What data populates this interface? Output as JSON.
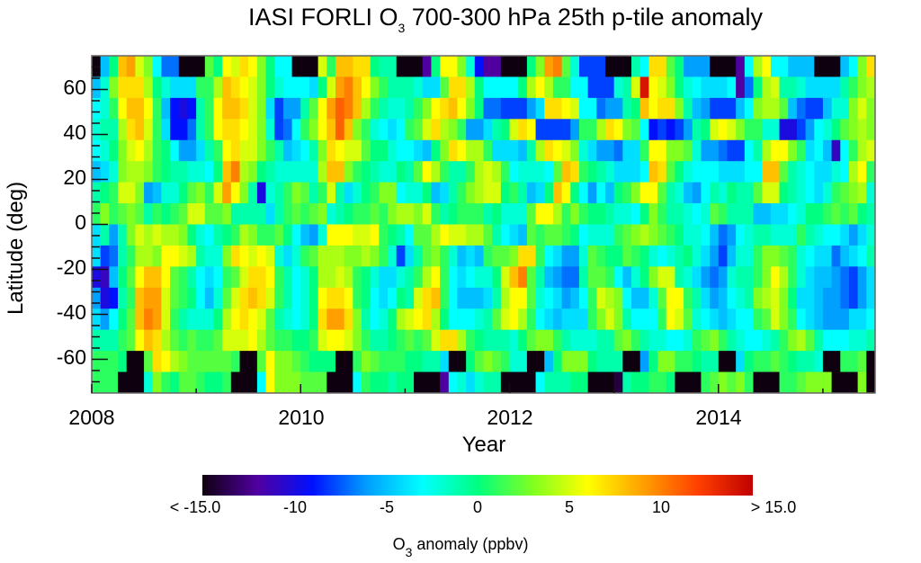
{
  "chart_data": {
    "type": "heatmap",
    "title": "IASI FORLI O3 700-300 hPa 25th p-tile anomaly",
    "title_parts": {
      "pre": "IASI FORLI O",
      "sub": "3",
      "post": " 700-300 hPa 25th p-tile anomaly"
    },
    "xlabel": "Year",
    "ylabel": "Latitude (deg)",
    "x_ticks": [
      "2008",
      "2010",
      "2012",
      "2014"
    ],
    "y_ticks": [
      "60",
      "40",
      "20",
      "0",
      "-20",
      "-40",
      "-60"
    ],
    "xlim": [
      2008.0,
      2015.5
    ],
    "ylim": [
      -75,
      75
    ],
    "x_start": 2008.0,
    "x_step_months": 1,
    "y_rows_lat_top_to_bottom": [
      70,
      60,
      50,
      40,
      30,
      20,
      10,
      0,
      -10,
      -20,
      -30,
      -40,
      -50,
      -60,
      -70,
      -75
    ],
    "colorbar": {
      "min": -15,
      "max": 15,
      "tick_labels": [
        "< -15.0",
        "-10",
        "-5",
        "0",
        "5",
        "10",
        "> 15.0"
      ],
      "tick_values": [
        -15,
        -10,
        -5,
        0,
        5,
        10,
        15
      ],
      "label_parts": {
        "pre": "O",
        "sub": "3",
        "post": " anomaly (ppbv)"
      },
      "label": "O3 anomaly (ppbv)",
      "stops": [
        "#0f0010",
        "#5000a0",
        "#0010ff",
        "#00a0ff",
        "#00ffff",
        "#00ff80",
        "#80ff20",
        "#ffff00",
        "#ffa000",
        "#ff4000",
        "#c00000"
      ]
    },
    "z": [
      [
        -16,
        -5,
        0,
        8,
        9,
        5,
        3,
        -3,
        -7,
        -7,
        -16,
        -16,
        -16,
        2,
        0,
        6,
        5,
        7,
        6,
        3,
        0,
        -3,
        -3,
        -16,
        -16,
        -16,
        5,
        1,
        8,
        8,
        7,
        7,
        0,
        -1,
        -1,
        -16,
        -16,
        -16,
        -12,
        0,
        6,
        6,
        3,
        -2,
        -9,
        -12,
        -12,
        -16,
        -16,
        -16,
        0,
        3,
        9,
        10,
        2,
        -2,
        -8,
        -8,
        -8,
        -16,
        -16,
        -16,
        -1,
        -3,
        7,
        7,
        2,
        0,
        -6,
        -6,
        -6,
        -16,
        -16,
        -16,
        -12,
        -3,
        4,
        6,
        -3,
        -3,
        -5,
        -5,
        -5,
        -16,
        -16,
        -16,
        -5,
        -3,
        3,
        7
      ],
      [
        -5,
        -2,
        3,
        7,
        7,
        7,
        4,
        0,
        -2,
        -4,
        -4,
        -4,
        1,
        1,
        4,
        8,
        7,
        6,
        5,
        3,
        0,
        -2,
        -3,
        -3,
        -3,
        -4,
        0,
        5,
        9,
        10,
        8,
        6,
        3,
        1,
        -1,
        -1,
        -1,
        -2,
        -4,
        -4,
        2,
        7,
        7,
        4,
        0,
        -3,
        -3,
        -3,
        -3,
        0,
        4,
        6,
        4,
        1,
        1,
        -3,
        -3,
        -8,
        -8,
        -8,
        -2,
        -1,
        5,
        14,
        6,
        5,
        3,
        0,
        -2,
        -3,
        -4,
        -4,
        -4,
        -3,
        -12,
        -7,
        0,
        4,
        5,
        -1,
        -1,
        -2,
        -4,
        -4,
        -4,
        -4,
        -1,
        1,
        3,
        4
      ],
      [
        -3,
        -2,
        1,
        6,
        8,
        8,
        6,
        1,
        -5,
        -9,
        -10,
        -9,
        -1,
        1,
        6,
        8,
        8,
        7,
        5,
        3,
        -4,
        -8,
        -6,
        -6,
        -1,
        2,
        6,
        9,
        11,
        10,
        8,
        4,
        1,
        -1,
        -2,
        -2,
        -1,
        1,
        3,
        6,
        7,
        8,
        6,
        3,
        0,
        -7,
        -7,
        -8,
        -8,
        -8,
        -6,
        -4,
        7,
        7,
        6,
        5,
        -3,
        -3,
        -7,
        -6,
        -6,
        -1,
        0,
        8,
        6,
        7,
        7,
        3,
        -1,
        -5,
        -6,
        -8,
        -8,
        -8,
        -5,
        -3,
        3,
        4,
        4,
        2,
        -5,
        -7,
        -8,
        -8,
        -5,
        -2,
        -2,
        3,
        5,
        3
      ],
      [
        -2,
        -1,
        -1,
        4,
        7,
        8,
        5,
        1,
        -4,
        -9,
        -9,
        -7,
        -1,
        1,
        6,
        7,
        7,
        6,
        5,
        3,
        -2,
        -8,
        -7,
        -3,
        1,
        3,
        6,
        8,
        11,
        8,
        3,
        1,
        -2,
        -3,
        -4,
        -3,
        1,
        2,
        5,
        7,
        4,
        3,
        1,
        -6,
        -6,
        -4,
        -1,
        0,
        5,
        7,
        6,
        -8,
        -8,
        -8,
        -8,
        -6,
        1,
        1,
        4,
        7,
        6,
        3,
        2,
        -3,
        -9,
        -8,
        -9,
        -8,
        -6,
        -1,
        0,
        5,
        6,
        5,
        3,
        1,
        1,
        -2,
        -2,
        -10,
        -10,
        -8,
        -6,
        -3,
        -2,
        0,
        2,
        3,
        4,
        3
      ],
      [
        -3,
        -2,
        0,
        3,
        5,
        6,
        4,
        1,
        0,
        -3,
        -6,
        -6,
        -4,
        -1,
        1,
        6,
        7,
        5,
        5,
        3,
        1,
        -1,
        -5,
        -4,
        -3,
        -1,
        3,
        7,
        6,
        5,
        5,
        2,
        0,
        0,
        -2,
        -3,
        -3,
        -4,
        -5,
        0,
        3,
        7,
        6,
        4,
        4,
        1,
        -4,
        -4,
        -4,
        -5,
        -1,
        4,
        7,
        6,
        5,
        3,
        -2,
        -4,
        -6,
        -6,
        -7,
        -4,
        -4,
        1,
        6,
        6,
        3,
        3,
        2,
        -2,
        -6,
        -6,
        -7,
        -8,
        -8,
        -3,
        -1,
        4,
        6,
        6,
        3,
        1,
        -4,
        -3,
        -5,
        -11,
        -3,
        1,
        4,
        5
      ],
      [
        -5,
        -4,
        -2,
        3,
        4,
        4,
        3,
        1,
        0,
        -1,
        -1,
        -2,
        -2,
        -3,
        0,
        8,
        10,
        4,
        3,
        0,
        -1,
        -2,
        -2,
        -2,
        -2,
        -2,
        4,
        8,
        8,
        3,
        1,
        0,
        -1,
        -2,
        -2,
        0,
        -1,
        2,
        6,
        4,
        1,
        -1,
        -1,
        1,
        4,
        5,
        4,
        1,
        -3,
        -2,
        -2,
        -2,
        -3,
        2,
        8,
        7,
        1,
        0,
        -1,
        -2,
        -4,
        -4,
        -4,
        -3,
        8,
        7,
        2,
        0,
        -2,
        -3,
        -3,
        -3,
        -4,
        -4,
        -4,
        -3,
        -3,
        8,
        8,
        2,
        -1,
        -2,
        -3,
        -4,
        -4,
        -2,
        -3,
        4,
        6,
        1
      ],
      [
        -1,
        0,
        1,
        5,
        5,
        3,
        -6,
        -5,
        -2,
        -2,
        0,
        2,
        3,
        1,
        5,
        9,
        6,
        3,
        -1,
        -10,
        -2,
        -1,
        1,
        3,
        2,
        -1,
        1,
        5,
        -1,
        -4,
        -2,
        0,
        1,
        3,
        3,
        -3,
        -2,
        -2,
        0,
        -5,
        -4,
        -1,
        1,
        3,
        4,
        5,
        5,
        0,
        1,
        -1,
        -5,
        -4,
        0,
        8,
        6,
        0,
        -3,
        -6,
        -3,
        -5,
        0,
        1,
        3,
        6,
        6,
        2,
        -1,
        -2,
        -5,
        -6,
        -3,
        -1,
        -2,
        0,
        -1,
        -1,
        2,
        5,
        5,
        0,
        -1,
        -2,
        -3,
        -4,
        -2,
        1,
        2,
        3,
        4,
        -2
      ],
      [
        1,
        3,
        1,
        2,
        3,
        2,
        -1,
        1,
        0,
        1,
        2,
        5,
        5,
        2,
        2,
        3,
        -1,
        -1,
        -1,
        -1,
        -4,
        -1,
        1,
        2,
        1,
        2,
        3,
        -2,
        -1,
        0,
        1,
        1,
        2,
        1,
        3,
        4,
        4,
        3,
        5,
        1,
        -1,
        0,
        1,
        1,
        1,
        -1,
        0,
        -2,
        -2,
        -2,
        2,
        6,
        6,
        4,
        1,
        3,
        1,
        0,
        0,
        -1,
        -2,
        -2,
        -3,
        0,
        3,
        1,
        -1,
        -1,
        -2,
        -3,
        -2,
        2,
        1,
        -1,
        -1,
        -1,
        -5,
        -5,
        -4,
        -4,
        -3,
        -2,
        0,
        0,
        1,
        2,
        1,
        2,
        0,
        -1
      ],
      [
        -4,
        -1,
        -6,
        -1,
        3,
        5,
        4,
        5,
        4,
        4,
        3,
        0,
        -2,
        -3,
        -1,
        0,
        1,
        4,
        3,
        1,
        1,
        2,
        0,
        -3,
        -5,
        -6,
        -2,
        6,
        6,
        6,
        5,
        5,
        6,
        1,
        0,
        -1,
        -3,
        2,
        2,
        4,
        6,
        5,
        5,
        4,
        4,
        2,
        -1,
        -3,
        -4,
        -5,
        2,
        1,
        2,
        2,
        1,
        0,
        -3,
        -2,
        -2,
        -2,
        1,
        2,
        3,
        4,
        3,
        2,
        1,
        0,
        -2,
        -2,
        -3,
        -5,
        -7,
        -6,
        -3,
        -2,
        -1,
        -1,
        -2,
        -2,
        -2,
        1,
        -1,
        -2,
        -3,
        -3,
        -4,
        -6,
        -4,
        -2
      ],
      [
        -4,
        -8,
        -7,
        -1,
        1,
        4,
        4,
        3,
        6,
        6,
        5,
        4,
        -1,
        -2,
        -2,
        3,
        7,
        6,
        5,
        6,
        5,
        -2,
        -4,
        -2,
        1,
        2,
        4,
        4,
        4,
        3,
        3,
        4,
        3,
        1,
        -2,
        -8,
        -4,
        -1,
        2,
        3,
        1,
        -2,
        -5,
        -4,
        -5,
        1,
        2,
        2,
        3,
        7,
        7,
        1,
        -3,
        -4,
        -6,
        -6,
        -2,
        2,
        1,
        0,
        0,
        2,
        1,
        0,
        -2,
        -3,
        -2,
        -1,
        0,
        -2,
        -4,
        -6,
        -8,
        -5,
        -2,
        -2,
        1,
        3,
        3,
        2,
        1,
        -2,
        -3,
        -4,
        -4,
        -7,
        -5,
        -4,
        -3,
        -1
      ],
      [
        -10,
        -11,
        -5,
        0,
        2,
        6,
        8,
        8,
        6,
        2,
        1,
        -1,
        -3,
        -4,
        -3,
        1,
        2,
        5,
        7,
        7,
        6,
        1,
        -1,
        -3,
        -2,
        0,
        4,
        4,
        5,
        4,
        1,
        0,
        -2,
        -4,
        -4,
        -2,
        -1,
        1,
        4,
        6,
        1,
        -3,
        -4,
        -3,
        -2,
        -2,
        0,
        5,
        8,
        10,
        2,
        -1,
        -5,
        -6,
        -7,
        -7,
        -1,
        2,
        2,
        1,
        -3,
        -5,
        -2,
        0,
        3,
        5,
        5,
        -1,
        -2,
        -4,
        -6,
        -7,
        -6,
        -2,
        -1,
        -1,
        1,
        3,
        6,
        4,
        1,
        -2,
        -4,
        -5,
        -5,
        -6,
        -7,
        -8,
        -6,
        -4
      ],
      [
        -6,
        -10,
        -9,
        -1,
        1,
        8,
        9,
        9,
        5,
        2,
        1,
        0,
        -3,
        -5,
        -2,
        2,
        5,
        7,
        8,
        7,
        5,
        1,
        -1,
        -3,
        -2,
        0,
        6,
        7,
        7,
        6,
        1,
        0,
        -3,
        -4,
        -3,
        0,
        -1,
        5,
        7,
        8,
        1,
        -3,
        -5,
        -5,
        -5,
        -4,
        -1,
        4,
        6,
        6,
        2,
        -2,
        -3,
        -4,
        -6,
        -5,
        -3,
        1,
        5,
        4,
        3,
        -3,
        -5,
        -5,
        -2,
        2,
        6,
        6,
        1,
        -1,
        -4,
        -6,
        -5,
        -3,
        -2,
        -1,
        3,
        4,
        5,
        3,
        0,
        -4,
        -4,
        -5,
        -6,
        -6,
        -7,
        -8,
        -6,
        -4
      ],
      [
        -4,
        -6,
        -3,
        0,
        2,
        8,
        10,
        9,
        5,
        1,
        -1,
        -2,
        -2,
        -2,
        0,
        4,
        6,
        7,
        6,
        5,
        2,
        -1,
        -2,
        -3,
        -2,
        0,
        7,
        9,
        9,
        7,
        3,
        -1,
        -3,
        -2,
        0,
        4,
        5,
        6,
        7,
        4,
        0,
        -3,
        -3,
        -3,
        -2,
        -1,
        2,
        5,
        6,
        4,
        1,
        -3,
        -4,
        -5,
        -4,
        -4,
        -4,
        1,
        3,
        5,
        3,
        -1,
        -3,
        -3,
        -3,
        1,
        6,
        5,
        2,
        -2,
        -3,
        -4,
        -5,
        -4,
        -3,
        -3,
        1,
        2,
        5,
        3,
        1,
        -3,
        -4,
        -5,
        -6,
        -6,
        -6,
        -4,
        -4,
        -3
      ],
      [
        -1,
        -1,
        -1,
        1,
        2,
        6,
        8,
        7,
        4,
        2,
        1,
        2,
        1,
        1,
        2,
        5,
        5,
        5,
        6,
        4,
        2,
        1,
        1,
        0,
        0,
        1,
        5,
        6,
        6,
        5,
        3,
        1,
        -1,
        -1,
        0,
        1,
        2,
        1,
        2,
        5,
        7,
        7,
        4,
        1,
        0,
        -1,
        -1,
        -1,
        -2,
        0,
        2,
        3,
        3,
        1,
        -1,
        -2,
        -2,
        -2,
        -1,
        -1,
        2,
        3,
        1,
        -1,
        -2,
        -2,
        -3,
        -3,
        -2,
        1,
        2,
        3,
        1,
        -1,
        -2,
        -3,
        -3,
        -2,
        -1,
        1,
        3,
        4,
        2,
        -1,
        -3,
        -3,
        -3,
        -2,
        -2,
        -1
      ],
      [
        1,
        1,
        1,
        0,
        -16,
        -16,
        2,
        7,
        6,
        4,
        3,
        2,
        2,
        2,
        2,
        2,
        1,
        -16,
        -16,
        2,
        6,
        3,
        3,
        2,
        1,
        0,
        0,
        0,
        -16,
        -16,
        1,
        3,
        2,
        1,
        1,
        1,
        0,
        0,
        -1,
        -1,
        -4,
        -16,
        -16,
        0,
        2,
        3,
        2,
        1,
        -2,
        -2,
        -16,
        -16,
        -5,
        0,
        3,
        3,
        3,
        0,
        -1,
        -1,
        -1,
        -16,
        -16,
        -6,
        0,
        3,
        3,
        1,
        1,
        0,
        -1,
        -1,
        -16,
        -16,
        -4,
        0,
        1,
        1,
        2,
        1,
        0,
        -1,
        -1,
        -2,
        -16,
        -16,
        1,
        1,
        2,
        -16
      ],
      [
        1,
        1,
        1,
        -16,
        -16,
        -16,
        -2,
        3,
        1,
        0,
        2,
        2,
        1,
        0,
        0,
        1,
        -16,
        -16,
        -16,
        -3,
        6,
        3,
        3,
        3,
        2,
        2,
        2,
        -16,
        -16,
        -16,
        -3,
        1,
        0,
        0,
        -1,
        0,
        0,
        -16,
        -16,
        -16,
        -12,
        -3,
        -2,
        -4,
        -2,
        -1,
        -1,
        -16,
        -16,
        -16,
        -16,
        -3,
        -1,
        -1,
        -1,
        0,
        0,
        -16,
        -16,
        -16,
        -14,
        -1,
        0,
        0,
        1,
        1,
        0,
        -16,
        -16,
        -16,
        1,
        2,
        3,
        2,
        3,
        1,
        -16,
        -16,
        -16,
        1,
        1,
        2,
        3,
        3,
        3,
        -16,
        -16,
        -16,
        3,
        -16
      ]
    ]
  }
}
